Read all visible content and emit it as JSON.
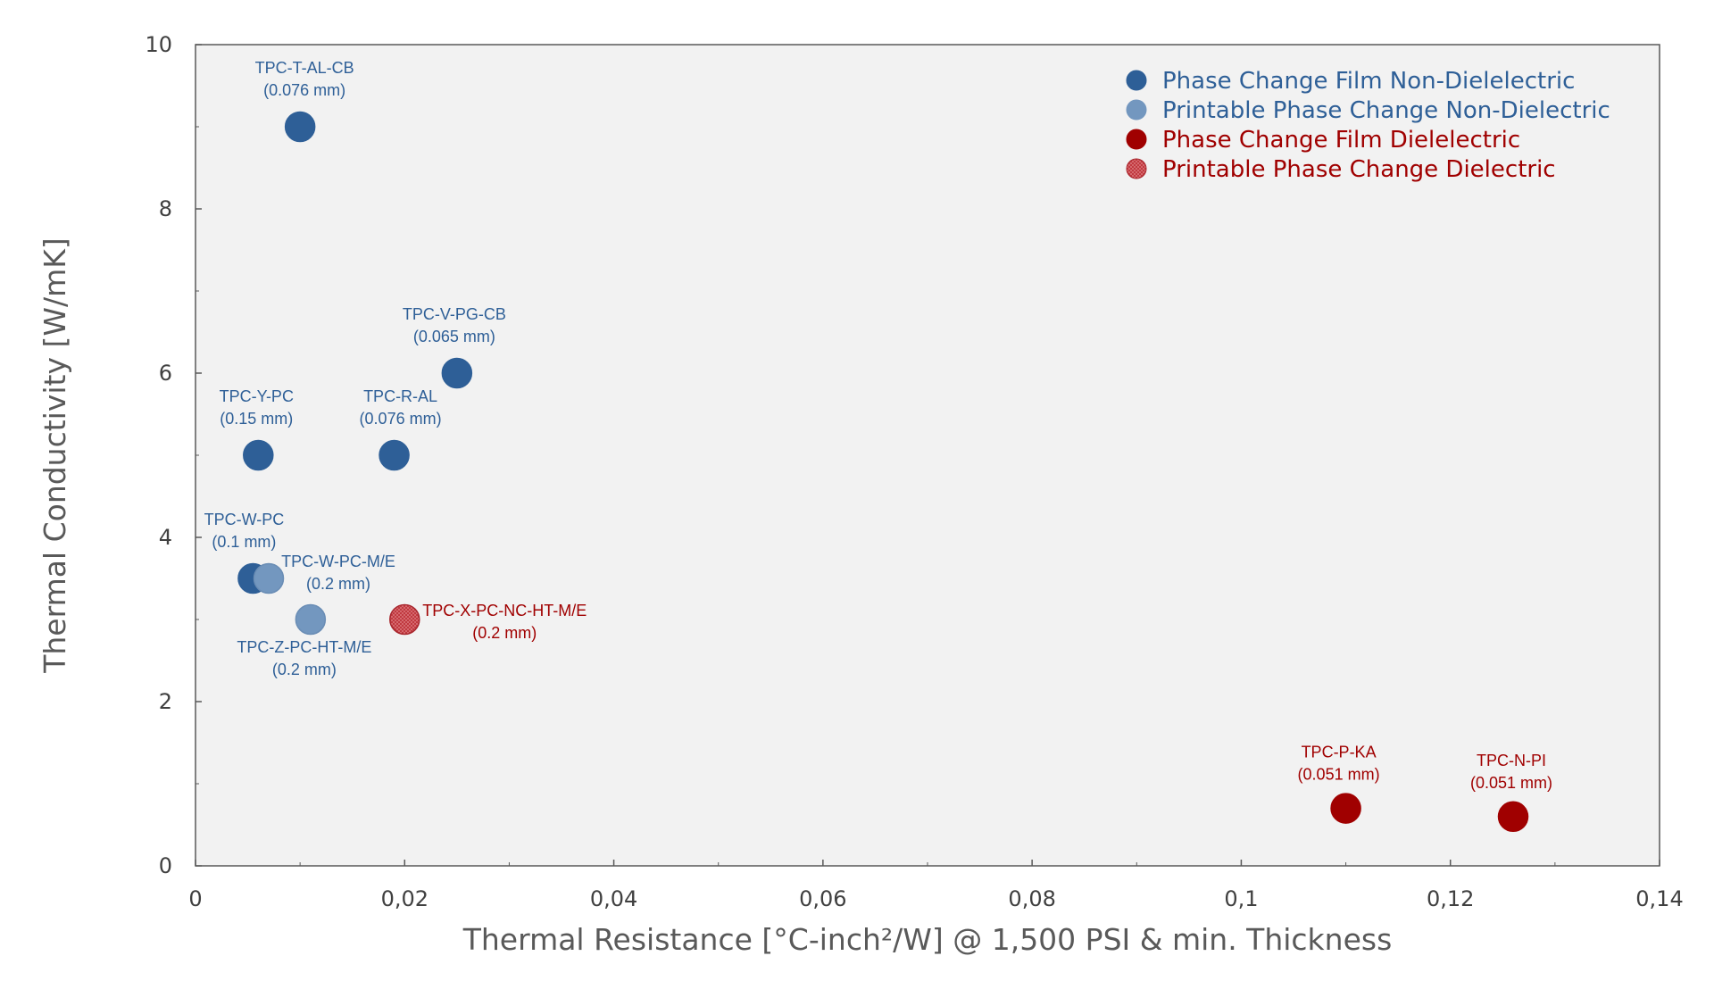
{
  "chart_data": {
    "type": "scatter",
    "title": "",
    "xlabel": "Thermal Resistance [°C-inch²/W] @ 1,500 PSI & min. Thickness",
    "ylabel": "Thermal Conductivity [W/mK]",
    "xlim": [
      0,
      0.14
    ],
    "ylim": [
      0,
      10
    ],
    "x_ticks": [
      "0",
      "0,02",
      "0,04",
      "0,06",
      "0,08",
      "0,1",
      "0,12",
      "0,14"
    ],
    "x_tick_values": [
      0,
      0.02,
      0.04,
      0.06,
      0.08,
      0.1,
      0.12,
      0.14
    ],
    "y_ticks": [
      "0",
      "2",
      "4",
      "6",
      "8",
      "10"
    ],
    "y_tick_values": [
      0,
      2,
      4,
      6,
      8,
      10
    ],
    "grid": false,
    "legend_position": "top-right",
    "series": [
      {
        "name": "Phase Change Film Non-Dielelectric",
        "color": "#2e5f97",
        "text_color": "#2e5f97",
        "points": [
          {
            "x": 0.01,
            "y": 9.0,
            "label": "TPC-T-AL-CB",
            "sub": "(0.076 mm)"
          },
          {
            "x": 0.025,
            "y": 6.0,
            "label": "TPC-V-PG-CB",
            "sub": "(0.065 mm)"
          },
          {
            "x": 0.006,
            "y": 5.0,
            "label": "TPC-Y-PC",
            "sub": "(0.15 mm)"
          },
          {
            "x": 0.019,
            "y": 5.0,
            "label": "TPC-R-AL",
            "sub": "(0.076 mm)"
          },
          {
            "x": 0.0055,
            "y": 3.5,
            "label": "TPC-W-PC",
            "sub": "(0.1 mm)"
          }
        ]
      },
      {
        "name": "Printable Phase Change Non-Dielectric",
        "color": "#7397bf",
        "text_color": "#2e5f97",
        "points": [
          {
            "x": 0.007,
            "y": 3.5,
            "label": "TPC-W-PC-M/E",
            "sub": "(0.2 mm)"
          },
          {
            "x": 0.011,
            "y": 3.0,
            "label": "TPC-Z-PC-HT-M/E",
            "sub": "(0.2 mm)"
          }
        ]
      },
      {
        "name": "Phase Change Film Dielelectric",
        "color": "#a00000",
        "text_color": "#a00000",
        "points": [
          {
            "x": 0.11,
            "y": 0.7,
            "label": "TPC-P-KA",
            "sub": "(0.051 mm)"
          },
          {
            "x": 0.126,
            "y": 0.6,
            "label": "TPC-N-PI",
            "sub": "(0.051 mm)"
          }
        ]
      },
      {
        "name": "Printable Phase Change Dielectric",
        "color": "#c0393f",
        "text_color": "#a00000",
        "points": [
          {
            "x": 0.02,
            "y": 3.0,
            "label": "TPC-X-PC-NC-HT-M/E",
            "sub": "(0.2 mm)"
          }
        ]
      }
    ]
  }
}
